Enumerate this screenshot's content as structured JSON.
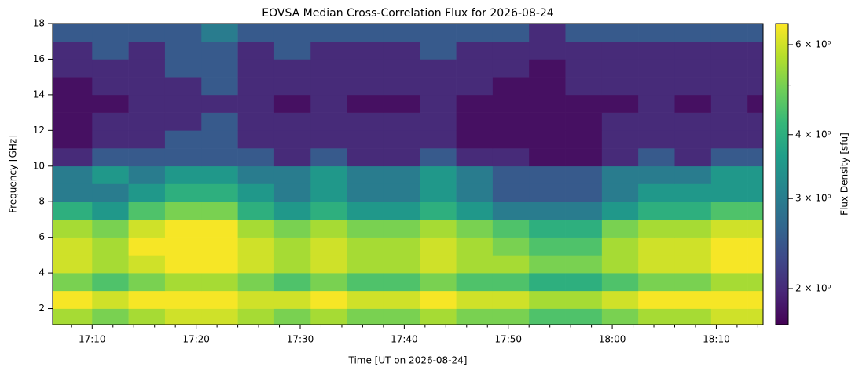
{
  "chart_data": {
    "type": "heatmap",
    "title": "EOVSA Median Cross-Correlation Flux for 2026-08-24",
    "xlabel": "Time [UT on 2026-08-24]",
    "ylabel": "Frequency [GHz]",
    "colorbar_label": "Flux Density [sfu]",
    "colormap": "viridis",
    "cscale": "log",
    "clim": [
      1.7,
      6.6
    ],
    "cticks": [
      {
        "value": 2,
        "label": "2 × 10⁰"
      },
      {
        "value": 3,
        "label": "3 × 10⁰"
      },
      {
        "value": 4,
        "label": "4 × 10⁰"
      },
      {
        "value": 6,
        "label": "6 × 10⁰"
      }
    ],
    "cticks_minor": [
      5
    ],
    "xlim": [
      1026.2,
      1094.5
    ],
    "xticks": [
      {
        "value": 1030,
        "label": "17:10"
      },
      {
        "value": 1040,
        "label": "17:20"
      },
      {
        "value": 1050,
        "label": "17:30"
      },
      {
        "value": 1060,
        "label": "17:40"
      },
      {
        "value": 1070,
        "label": "17:50"
      },
      {
        "value": 1080,
        "label": "18:00"
      },
      {
        "value": 1090,
        "label": "18:10"
      }
    ],
    "xticks_minor": [
      1028,
      1032,
      1034,
      1036,
      1038,
      1042,
      1044,
      1046,
      1048,
      1052,
      1054,
      1056,
      1058,
      1062,
      1064,
      1066,
      1068,
      1072,
      1074,
      1076,
      1078,
      1082,
      1084,
      1086,
      1088,
      1092,
      1094
    ],
    "ylim": [
      1.1,
      18
    ],
    "yticks": [
      2,
      4,
      6,
      8,
      10,
      12,
      14,
      16,
      18
    ],
    "xbins": [
      1026.2,
      1030,
      1033.5,
      1037,
      1040.5,
      1044,
      1047.5,
      1051,
      1054.5,
      1058,
      1061.5,
      1065,
      1068.5,
      1072,
      1075.5,
      1079,
      1082.5,
      1086,
      1089.5,
      1093,
      1094.5
    ],
    "ybins": [
      1.1,
      2,
      3,
      4,
      5,
      6,
      7,
      8,
      9,
      10,
      11,
      12,
      13,
      14,
      15,
      16,
      17,
      18
    ],
    "z": [
      [
        5.5,
        5.0,
        5.5,
        6.0,
        6.0,
        5.5,
        5.0,
        5.5,
        5.0,
        5.0,
        5.5,
        5.0,
        5.0,
        4.5,
        4.5,
        5.0,
        5.5,
        5.5,
        6.0,
        6.0
      ],
      [
        6.5,
        6.0,
        6.5,
        6.5,
        6.5,
        6.0,
        6.0,
        6.5,
        6.0,
        6.0,
        6.5,
        6.0,
        6.0,
        5.5,
        5.5,
        6.0,
        6.5,
        6.5,
        6.5,
        6.5
      ],
      [
        5.0,
        4.5,
        5.0,
        5.5,
        5.5,
        5.0,
        4.5,
        5.0,
        4.5,
        4.5,
        5.0,
        4.5,
        4.5,
        4.0,
        4.0,
        4.5,
        5.0,
        5.0,
        5.5,
        5.5
      ],
      [
        6.0,
        5.5,
        6.0,
        6.5,
        6.5,
        6.0,
        5.5,
        6.0,
        5.5,
        5.5,
        6.0,
        5.5,
        5.5,
        5.0,
        5.0,
        5.5,
        6.0,
        6.0,
        6.5,
        6.5
      ],
      [
        6.0,
        5.5,
        6.5,
        6.5,
        6.5,
        6.0,
        5.5,
        6.0,
        5.5,
        5.5,
        6.0,
        5.5,
        5.0,
        4.5,
        4.5,
        5.5,
        6.0,
        6.0,
        6.5,
        6.5
      ],
      [
        5.5,
        5.0,
        6.0,
        6.5,
        6.5,
        5.5,
        5.0,
        5.5,
        5.0,
        5.0,
        5.5,
        5.0,
        4.5,
        4.0,
        4.0,
        5.0,
        5.5,
        5.5,
        6.0,
        6.0
      ],
      [
        4.0,
        3.5,
        4.5,
        5.0,
        5.0,
        4.0,
        3.5,
        4.0,
        3.5,
        3.5,
        4.0,
        3.5,
        3.0,
        3.0,
        3.0,
        3.5,
        4.0,
        4.0,
        4.5,
        4.5
      ],
      [
        3.0,
        3.0,
        3.5,
        4.0,
        4.0,
        3.5,
        3.0,
        3.5,
        3.0,
        3.0,
        3.5,
        3.0,
        2.5,
        2.5,
        2.5,
        3.0,
        3.5,
        3.5,
        3.5,
        3.5
      ],
      [
        3.0,
        3.5,
        3.0,
        3.5,
        3.5,
        3.0,
        3.0,
        3.5,
        3.0,
        3.0,
        3.5,
        3.0,
        2.5,
        2.5,
        2.5,
        3.0,
        3.0,
        3.0,
        3.5,
        3.5
      ],
      [
        2.0,
        2.5,
        2.5,
        2.5,
        2.5,
        2.5,
        2.0,
        2.5,
        2.0,
        2.0,
        2.5,
        2.0,
        2.0,
        1.8,
        1.8,
        2.0,
        2.5,
        2.0,
        2.5,
        2.5
      ],
      [
        1.8,
        2.0,
        2.0,
        2.5,
        2.5,
        2.0,
        2.0,
        2.0,
        2.0,
        2.0,
        2.0,
        1.8,
        1.8,
        1.8,
        1.8,
        2.0,
        2.0,
        2.0,
        2.0,
        2.0
      ],
      [
        1.8,
        2.0,
        2.0,
        2.0,
        2.5,
        2.0,
        2.0,
        2.0,
        2.0,
        2.0,
        2.0,
        1.8,
        1.8,
        1.8,
        1.8,
        2.0,
        2.0,
        2.0,
        2.0,
        2.0
      ],
      [
        1.8,
        1.8,
        2.0,
        2.0,
        2.0,
        2.0,
        1.8,
        2.0,
        1.8,
        1.8,
        2.0,
        1.8,
        1.8,
        1.8,
        1.8,
        1.8,
        2.0,
        1.8,
        2.0,
        1.8
      ],
      [
        1.8,
        2.0,
        2.0,
        2.0,
        2.5,
        2.0,
        2.0,
        2.0,
        2.0,
        2.0,
        2.0,
        2.0,
        1.8,
        1.8,
        2.0,
        2.0,
        2.0,
        2.0,
        2.0,
        2.0
      ],
      [
        2.0,
        2.0,
        2.0,
        2.5,
        2.5,
        2.0,
        2.0,
        2.0,
        2.0,
        2.0,
        2.0,
        2.0,
        2.0,
        1.8,
        2.0,
        2.0,
        2.0,
        2.0,
        2.0,
        2.0
      ],
      [
        2.0,
        2.5,
        2.0,
        2.5,
        2.5,
        2.0,
        2.5,
        2.0,
        2.0,
        2.0,
        2.5,
        2.0,
        2.0,
        2.0,
        2.0,
        2.0,
        2.0,
        2.0,
        2.0,
        2.0
      ],
      [
        2.5,
        2.5,
        2.5,
        2.5,
        3.0,
        2.5,
        2.5,
        2.5,
        2.5,
        2.5,
        2.5,
        2.5,
        2.5,
        2.0,
        2.5,
        2.5,
        2.5,
        2.5,
        2.5,
        2.5
      ]
    ]
  }
}
